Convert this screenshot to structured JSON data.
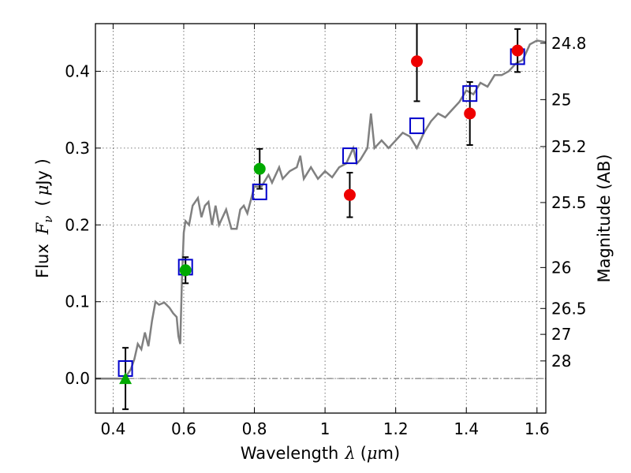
{
  "chart_data": {
    "type": "scatter",
    "title": "",
    "xlabel_parts": [
      "Wavelength",
      "λ",
      "(",
      "μ",
      "m)"
    ],
    "ylabel_parts": [
      "Flux",
      "F",
      "ν",
      "(",
      "μ",
      "Jy )"
    ],
    "y2label": "Magnitude (AB)",
    "xlim": [
      0.35,
      1.625
    ],
    "ylim": [
      -0.045,
      0.462
    ],
    "x_ticks": [
      0.4,
      0.6,
      0.8,
      1.0,
      1.2,
      1.4,
      1.6
    ],
    "x_tick_labels": [
      "0.4",
      "0.6",
      "0.8",
      "1",
      "1.2",
      "1.4",
      "1.6"
    ],
    "y_ticks": [
      0.0,
      0.1,
      0.2,
      0.3,
      0.4
    ],
    "y_tick_labels": [
      "0.0",
      "0.1",
      "0.2",
      "0.3",
      "0.4"
    ],
    "mag_ticks": [
      {
        "label": "24.8",
        "flux": 0.4365
      },
      {
        "label": "25",
        "flux": 0.3631
      },
      {
        "label": "25.2",
        "flux": 0.302
      },
      {
        "label": "25.5",
        "flux": 0.2291
      },
      {
        "label": "26",
        "flux": 0.1445
      },
      {
        "label": "26.5",
        "flux": 0.0912
      },
      {
        "label": "27",
        "flux": 0.0575
      },
      {
        "label": "28",
        "flux": 0.0229
      }
    ],
    "grid": true,
    "colors": {
      "model": "#808080",
      "model_points": "#0000cc",
      "optical_detections": "#00aa00",
      "nir_detections": "#ee0000",
      "errorbars": "#000000"
    },
    "series": [
      {
        "kind": "model_spectrum",
        "points": [
          [
            0.35,
            0.0
          ],
          [
            0.4,
            0.0
          ],
          [
            0.43,
            0.0
          ],
          [
            0.44,
            0.005
          ],
          [
            0.45,
            0.012
          ],
          [
            0.46,
            0.025
          ],
          [
            0.47,
            0.045
          ],
          [
            0.48,
            0.038
          ],
          [
            0.49,
            0.06
          ],
          [
            0.5,
            0.042
          ],
          [
            0.51,
            0.075
          ],
          [
            0.52,
            0.1
          ],
          [
            0.53,
            0.096
          ],
          [
            0.545,
            0.099
          ],
          [
            0.56,
            0.092
          ],
          [
            0.57,
            0.085
          ],
          [
            0.58,
            0.08
          ],
          [
            0.585,
            0.055
          ],
          [
            0.59,
            0.045
          ],
          [
            0.595,
            0.13
          ],
          [
            0.6,
            0.19
          ],
          [
            0.605,
            0.205
          ],
          [
            0.615,
            0.2
          ],
          [
            0.625,
            0.225
          ],
          [
            0.64,
            0.235
          ],
          [
            0.65,
            0.21
          ],
          [
            0.66,
            0.225
          ],
          [
            0.67,
            0.23
          ],
          [
            0.68,
            0.2
          ],
          [
            0.69,
            0.225
          ],
          [
            0.7,
            0.2
          ],
          [
            0.72,
            0.22
          ],
          [
            0.735,
            0.195
          ],
          [
            0.75,
            0.195
          ],
          [
            0.76,
            0.22
          ],
          [
            0.77,
            0.225
          ],
          [
            0.78,
            0.215
          ],
          [
            0.8,
            0.25
          ],
          [
            0.82,
            0.25
          ],
          [
            0.84,
            0.265
          ],
          [
            0.85,
            0.255
          ],
          [
            0.87,
            0.275
          ],
          [
            0.88,
            0.26
          ],
          [
            0.9,
            0.27
          ],
          [
            0.92,
            0.275
          ],
          [
            0.93,
            0.29
          ],
          [
            0.94,
            0.26
          ],
          [
            0.96,
            0.275
          ],
          [
            0.98,
            0.26
          ],
          [
            1.0,
            0.27
          ],
          [
            1.02,
            0.262
          ],
          [
            1.04,
            0.275
          ],
          [
            1.06,
            0.28
          ],
          [
            1.08,
            0.3
          ],
          [
            1.09,
            0.28
          ],
          [
            1.1,
            0.285
          ],
          [
            1.12,
            0.3
          ],
          [
            1.13,
            0.345
          ],
          [
            1.14,
            0.3
          ],
          [
            1.16,
            0.31
          ],
          [
            1.18,
            0.3
          ],
          [
            1.2,
            0.31
          ],
          [
            1.22,
            0.32
          ],
          [
            1.24,
            0.315
          ],
          [
            1.26,
            0.3
          ],
          [
            1.28,
            0.32
          ],
          [
            1.3,
            0.335
          ],
          [
            1.32,
            0.345
          ],
          [
            1.34,
            0.34
          ],
          [
            1.36,
            0.35
          ],
          [
            1.38,
            0.36
          ],
          [
            1.4,
            0.375
          ],
          [
            1.42,
            0.37
          ],
          [
            1.44,
            0.385
          ],
          [
            1.46,
            0.38
          ],
          [
            1.48,
            0.395
          ],
          [
            1.5,
            0.395
          ],
          [
            1.52,
            0.4
          ],
          [
            1.54,
            0.41
          ],
          [
            1.56,
            0.415
          ],
          [
            1.58,
            0.435
          ],
          [
            1.6,
            0.44
          ],
          [
            1.625,
            0.438
          ]
        ]
      },
      {
        "kind": "model_photometry",
        "x": [
          0.435,
          0.605,
          0.815,
          1.07,
          1.26,
          1.41,
          1.545
        ],
        "y": [
          0.013,
          0.145,
          0.243,
          0.29,
          0.329,
          0.371,
          0.419
        ]
      },
      {
        "kind": "optical_detection",
        "x": [
          0.605,
          0.815
        ],
        "y": [
          0.141,
          0.273
        ],
        "yerr": [
          0.017,
          0.026
        ]
      },
      {
        "kind": "optical_upper_limit",
        "x": [
          0.435
        ],
        "y": [
          0.0
        ],
        "yerr": [
          0.04
        ]
      },
      {
        "kind": "nir_detection",
        "x": [
          1.07,
          1.26,
          1.41,
          1.545
        ],
        "y": [
          0.239,
          0.413,
          0.345,
          0.427
        ],
        "yerr": [
          0.029,
          0.052,
          0.041,
          0.028
        ]
      }
    ]
  }
}
